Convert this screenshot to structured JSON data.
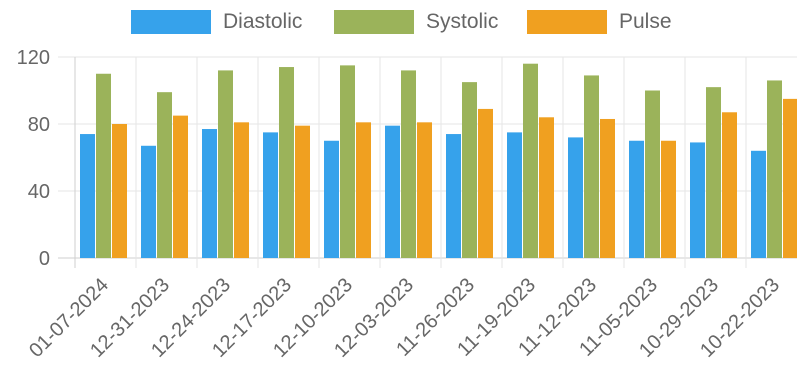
{
  "chart_data": {
    "type": "bar",
    "title": "",
    "xlabel": "",
    "ylabel": "",
    "ylim": [
      0,
      120
    ],
    "yticks": [
      0,
      40,
      80,
      120
    ],
    "grid": true,
    "legend_position": "top-center",
    "categories": [
      "01-07-2024",
      "12-31-2023",
      "12-24-2023",
      "12-17-2023",
      "12-10-2023",
      "12-03-2023",
      "11-26-2023",
      "11-19-2023",
      "11-12-2023",
      "11-05-2023",
      "10-29-2023",
      "10-22-2023"
    ],
    "series": [
      {
        "name": "Diastolic",
        "color": "#36a2eb",
        "values": [
          74,
          67,
          77,
          75,
          70,
          79,
          74,
          75,
          72,
          70,
          69,
          64
        ]
      },
      {
        "name": "Systolic",
        "color": "#9bb35a",
        "values": [
          110,
          99,
          112,
          114,
          115,
          112,
          105,
          116,
          109,
          100,
          102,
          106
        ]
      },
      {
        "name": "Pulse",
        "color": "#f0a020",
        "values": [
          80,
          85,
          81,
          79,
          81,
          81,
          89,
          84,
          83,
          70,
          87,
          95
        ]
      }
    ]
  }
}
